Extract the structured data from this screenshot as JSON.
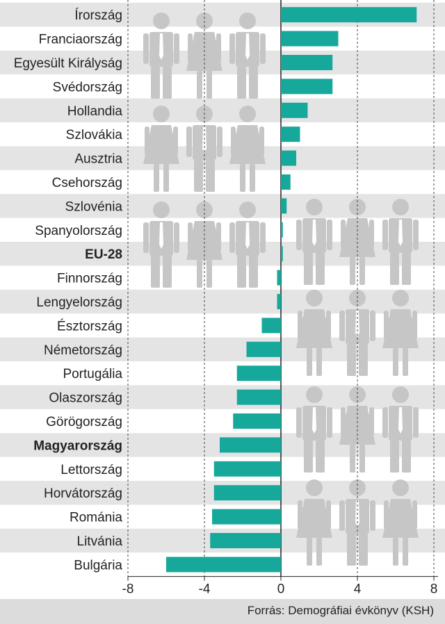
{
  "chart_data": {
    "type": "bar",
    "orientation": "horizontal",
    "categories": [
      "Írország",
      "Franciaország",
      "Egyesült Királyság",
      "Svédország",
      "Hollandia",
      "Szlovákia",
      "Ausztria",
      "Csehország",
      "Szlovénia",
      "Spanyolország",
      "EU-28",
      "Finnország",
      "Lengyelország",
      "Észtország",
      "Németország",
      "Portugália",
      "Olaszország",
      "Görögország",
      "Magyarország",
      "Lettország",
      "Horvátország",
      "Románia",
      "Litvánia",
      "Bulgária"
    ],
    "highlighted": [
      "EU-28",
      "Magyarország"
    ],
    "values": [
      7.1,
      3.0,
      2.7,
      2.7,
      1.4,
      1.0,
      0.8,
      0.5,
      0.3,
      0.1,
      0.1,
      -0.2,
      -0.2,
      -1.0,
      -1.8,
      -2.3,
      -2.3,
      -2.5,
      -3.2,
      -3.5,
      -3.5,
      -3.6,
      -3.7,
      -6.0
    ],
    "xlim": [
      -8,
      8
    ],
    "xticks": [
      -8,
      -4,
      0,
      4,
      8
    ],
    "xtick_labels": [
      "-8",
      "-4",
      "0",
      "4",
      "8"
    ],
    "grid": true,
    "bar_color": "#16a89a",
    "band_color": "#e4e4e4",
    "icon_color": "#c6c6c6"
  },
  "footer": {
    "source": "Forrás: Demográfiai évkönyv (KSH)"
  },
  "decorations": {
    "icons": [
      "person-male-icon",
      "person-female-icon"
    ]
  }
}
